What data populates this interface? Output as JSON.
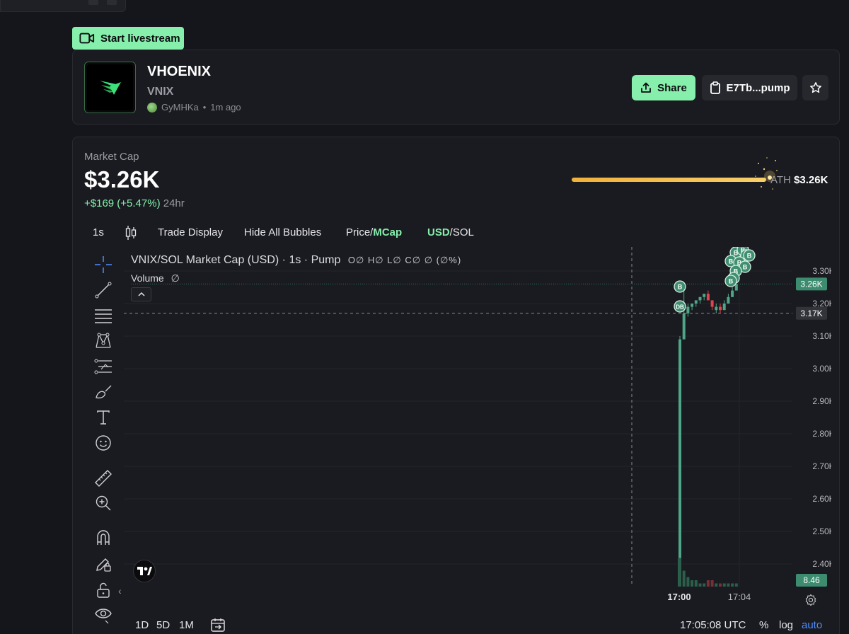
{
  "livestream_button": "Start livestream",
  "token": {
    "name": "VHOENIX",
    "symbol": "VNIX",
    "creator": "GyMHKa",
    "age": "1m ago"
  },
  "actions": {
    "share": "Share",
    "contract": "E7Tb...pump"
  },
  "market": {
    "label": "Market Cap",
    "value": "$3.26K",
    "change": "+$169 (+5.47%)",
    "period": "24hr",
    "ath_label": "ATH",
    "ath_value": "$3.26K"
  },
  "toolbar": {
    "interval": "1s",
    "trade_display": "Trade Display",
    "hide_bubbles": "Hide All Bubbles",
    "price": "Price/",
    "mcap": "MCap",
    "usd": "USD",
    "sol": "/SOL"
  },
  "chart": {
    "legend_title": "VNIX/SOL Market Cap (USD) · 1s · Pump",
    "legend_ohlc": "O∅ H∅ L∅ C∅ ∅ (∅%)",
    "volume_label": "Volume",
    "volume_value": "∅"
  },
  "chart_data": {
    "type": "candlestick",
    "title": "VNIX/SOL Market Cap (USD) · 1s · Pump",
    "y_ticks": [
      "3.30K",
      "3.20K",
      "3.10K",
      "3.00K",
      "2.90K",
      "2.80K",
      "2.70K",
      "2.60K",
      "2.50K",
      "2.40K"
    ],
    "ylim": [
      2.33,
      3.34
    ],
    "x_ticks": [
      "17:00",
      "17:04"
    ],
    "last_value_label": "3.26K",
    "crosshair_value_label": "3.17K",
    "volume_label": "8.46",
    "candles": [
      {
        "o": 2.4,
        "h": 3.1,
        "l": 2.4,
        "c": 3.09,
        "up": true
      },
      {
        "o": 3.09,
        "h": 3.25,
        "l": 3.09,
        "c": 3.17,
        "up": true
      },
      {
        "o": 3.17,
        "h": 3.2,
        "l": 3.16,
        "c": 3.19,
        "up": true
      },
      {
        "o": 3.19,
        "h": 3.2,
        "l": 3.18,
        "c": 3.2,
        "up": true
      },
      {
        "o": 3.2,
        "h": 3.21,
        "l": 3.19,
        "c": 3.21,
        "up": true
      },
      {
        "o": 3.21,
        "h": 3.22,
        "l": 3.2,
        "c": 3.22,
        "up": true
      },
      {
        "o": 3.22,
        "h": 3.23,
        "l": 3.21,
        "c": 3.23,
        "up": true
      },
      {
        "o": 3.23,
        "h": 3.24,
        "l": 3.21,
        "c": 3.21,
        "up": false
      },
      {
        "o": 3.21,
        "h": 3.21,
        "l": 3.18,
        "c": 3.19,
        "up": false
      },
      {
        "o": 3.18,
        "h": 3.2,
        "l": 3.17,
        "c": 3.19,
        "up": true
      },
      {
        "o": 3.19,
        "h": 3.2,
        "l": 3.17,
        "c": 3.18,
        "up": false
      },
      {
        "o": 3.18,
        "h": 3.21,
        "l": 3.18,
        "c": 3.2,
        "up": true
      },
      {
        "o": 3.2,
        "h": 3.23,
        "l": 3.2,
        "c": 3.22,
        "up": true
      },
      {
        "o": 3.22,
        "h": 3.25,
        "l": 3.22,
        "c": 3.24,
        "up": true
      },
      {
        "o": 3.24,
        "h": 3.26,
        "l": 3.24,
        "c": 3.26,
        "up": true
      }
    ],
    "volume": [
      9,
      5,
      3,
      2,
      2,
      1,
      1,
      2,
      2,
      1,
      1,
      1,
      1,
      1,
      1
    ]
  },
  "timeframes": [
    "1D",
    "5D",
    "1M"
  ],
  "bottom": {
    "time": "17:05:08 UTC",
    "percent": "%",
    "log": "log",
    "auto": "auto"
  },
  "colors": {
    "accent": "#86efac",
    "up": "#4fa585",
    "down": "#e0454f",
    "ath": "#f2b13a"
  }
}
